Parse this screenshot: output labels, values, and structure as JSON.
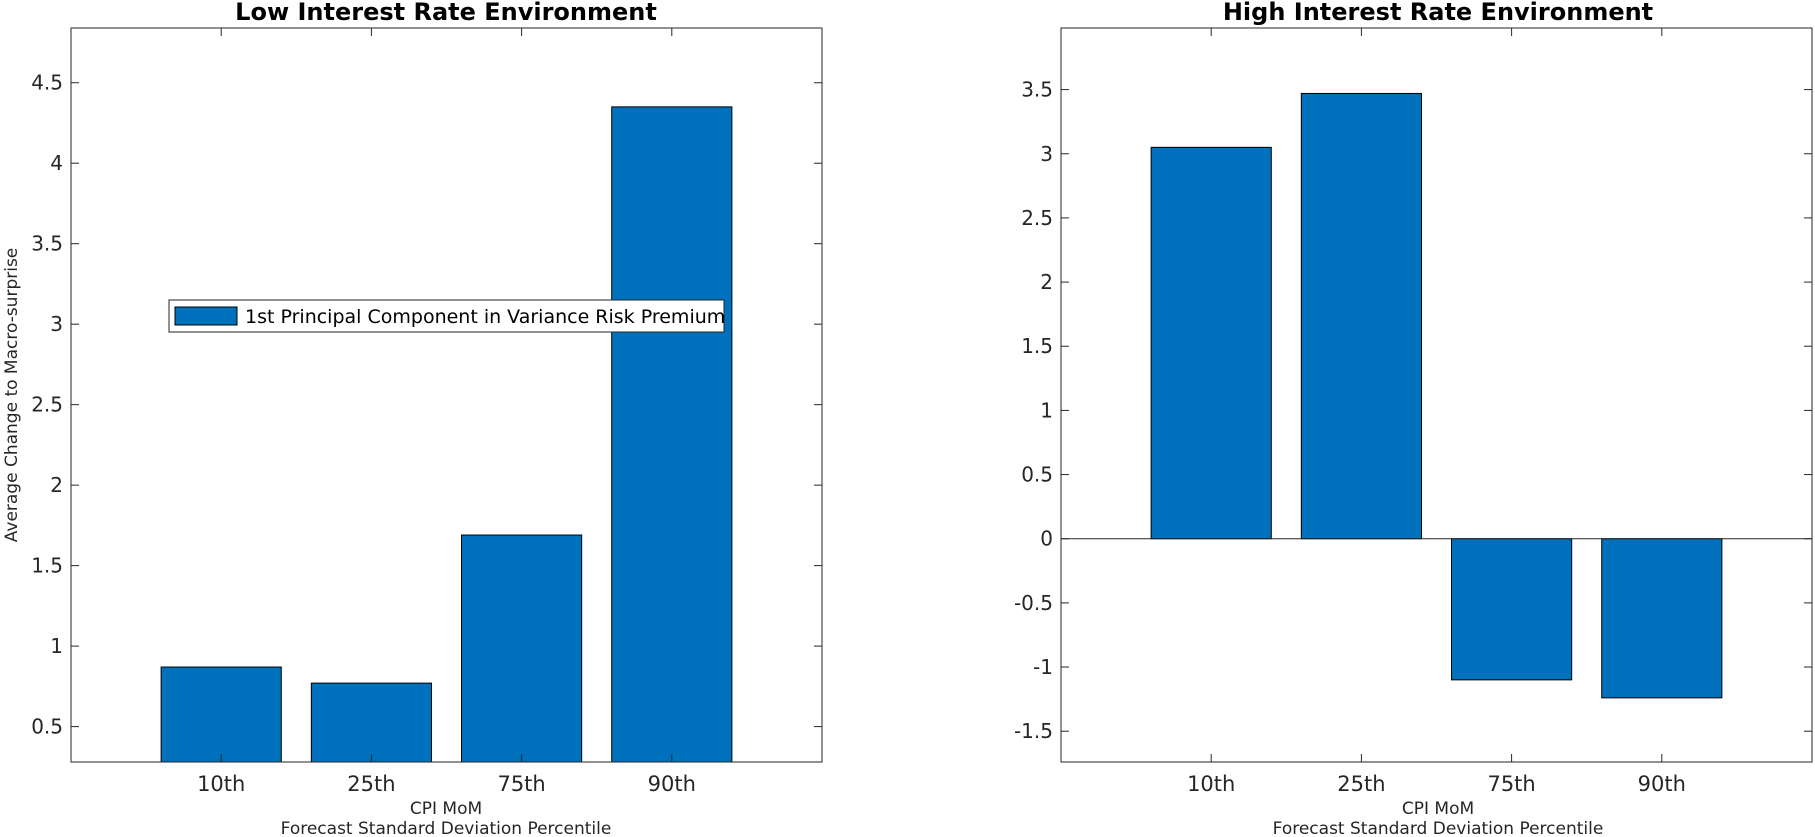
{
  "chart_data": [
    {
      "type": "bar",
      "title": "Low Interest Rate Environment",
      "categories": [
        "10th",
        "25th",
        "75th",
        "90th"
      ],
      "series": [
        {
          "name": "1st Principal Component in Variance Risk Premium",
          "values": [
            0.87,
            0.77,
            1.69,
            4.35
          ]
        }
      ],
      "xlabel": [
        "CPI MoM",
        "Forecast Standard Deviation Percentile"
      ],
      "ylabel": "Average Change to Macro-surprise",
      "ylim": [
        0.28,
        4.84
      ],
      "yticks": [
        "0.5",
        "1",
        "1.5",
        "2",
        "2.5",
        "3",
        "3.5",
        "4",
        "4.5"
      ],
      "legend": "center-left",
      "grid": false,
      "bar_color": "#0072BD"
    },
    {
      "type": "bar",
      "title": "High Interest Rate Environment",
      "categories": [
        "10th",
        "25th",
        "75th",
        "90th"
      ],
      "series": [
        {
          "name": "",
          "values": [
            3.05,
            3.47,
            -1.1,
            -1.24
          ]
        }
      ],
      "xlabel": [
        "CPI MoM",
        "Forecast Standard Deviation Percentile"
      ],
      "ylabel": "",
      "ylim": [
        -1.74,
        3.98
      ],
      "yticks": [
        "-1.5",
        "-1",
        "-0.5",
        "0",
        "0.5",
        "1",
        "1.5",
        "2",
        "2.5",
        "3",
        "3.5"
      ],
      "legend": "none",
      "grid": false,
      "bar_color": "#0072BD"
    }
  ]
}
